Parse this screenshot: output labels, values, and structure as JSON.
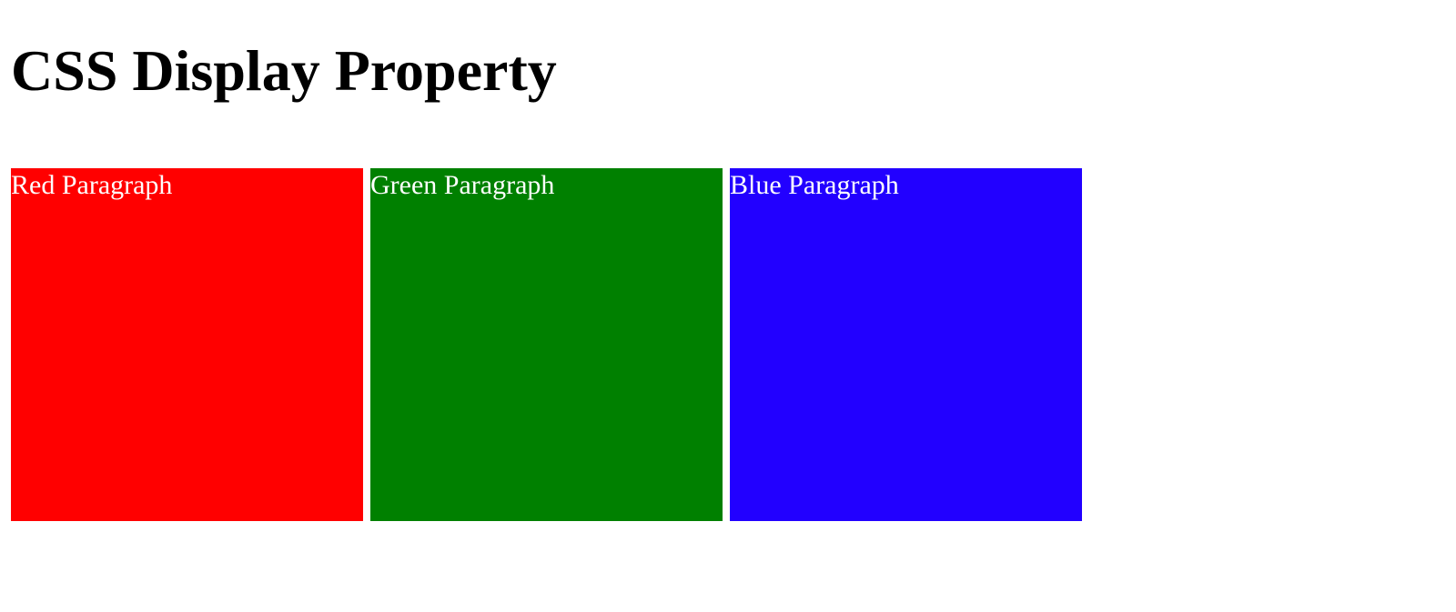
{
  "page": {
    "title": "CSS Display Property"
  },
  "paragraphs": [
    {
      "label": "Red Paragraph",
      "color": "#ff0000"
    },
    {
      "label": "Green Paragraph",
      "color": "#008000"
    },
    {
      "label": "Blue Paragraph",
      "color": "#2200ff"
    }
  ]
}
